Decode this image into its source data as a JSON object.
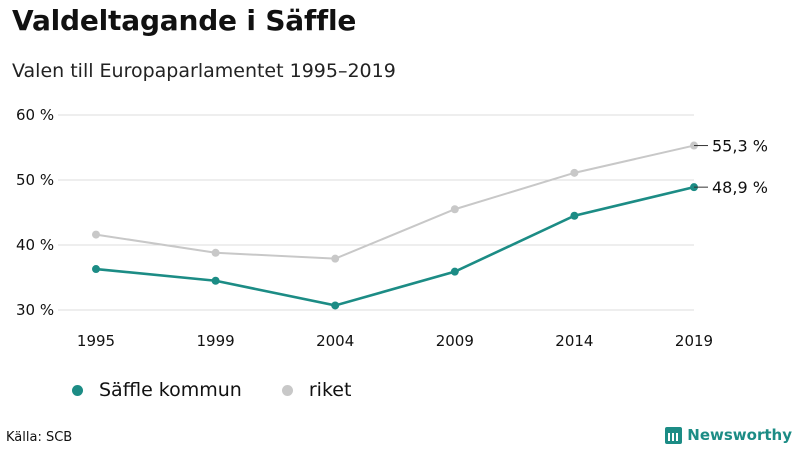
{
  "title": "Valdeltagande i Säffle",
  "subtitle": "Valen till Europaparlamentet 1995–2019",
  "source": "Källa: SCB",
  "brand": "Newsworthy",
  "colors": {
    "saffle": "#1c8c85",
    "riket": "#c8c8c8",
    "grid": "#dddddd"
  },
  "chart_data": {
    "type": "line",
    "categories": [
      "1995",
      "1999",
      "2004",
      "2009",
      "2014",
      "2019"
    ],
    "x": [
      1995,
      1999,
      2004,
      2009,
      2014,
      2019
    ],
    "series": [
      {
        "name": "Säffle kommun",
        "values": [
          36.3,
          34.5,
          30.7,
          35.9,
          44.5,
          48.9
        ],
        "end_label": "48,9 %"
      },
      {
        "name": "riket",
        "values": [
          41.6,
          38.8,
          37.9,
          45.5,
          51.1,
          55.3
        ],
        "end_label": "55,3 %"
      }
    ],
    "yticks": [
      "30 %",
      "40 %",
      "50 %",
      "60 %"
    ],
    "ylim": [
      30,
      60
    ],
    "grid": true,
    "legend": "bottom-left"
  }
}
